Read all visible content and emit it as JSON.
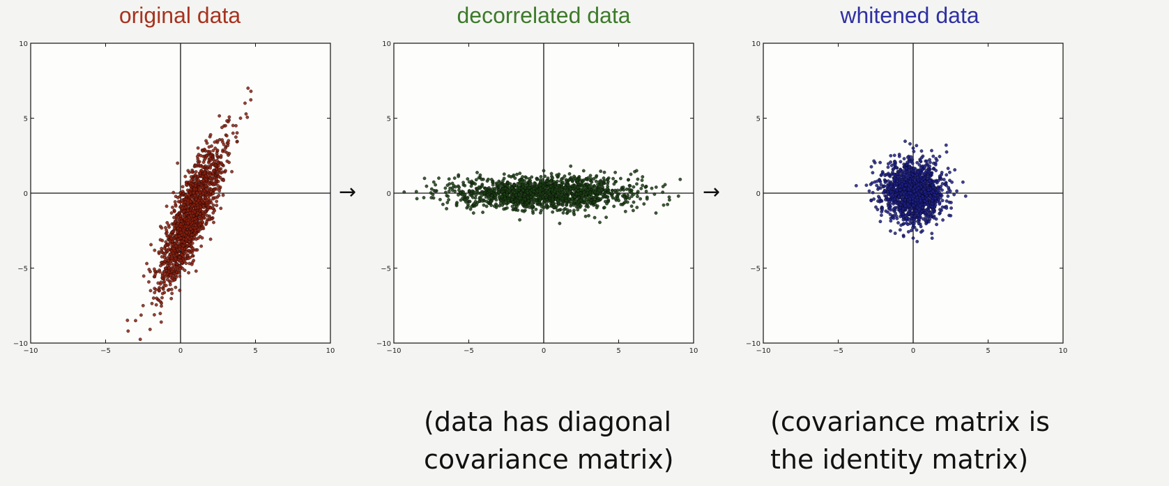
{
  "panels": [
    {
      "title": "original data",
      "color": "#a8321f",
      "marker_color": "#8a1e0e"
    },
    {
      "title": "decorrelated data",
      "color": "#3d7a2a",
      "marker_color": "#1b3d14"
    },
    {
      "title": "whitened data",
      "color": "#2f30a3",
      "marker_color": "#1c1f86"
    }
  ],
  "arrows": [
    "→",
    "→"
  ],
  "captions": {
    "decorrelated": [
      "(data has diagonal",
      "covariance matrix)"
    ],
    "whitened": [
      "(covariance matrix is",
      "the identity matrix)"
    ]
  },
  "chart_data": [
    {
      "type": "scatter",
      "title": "original data",
      "xlim": [
        -10,
        10
      ],
      "ylim": [
        -10,
        10
      ],
      "xticks": [
        -10,
        -5,
        0,
        5,
        10
      ],
      "yticks": [
        -10,
        -5,
        0,
        5,
        10
      ],
      "points": [
        [
          -2.5,
          -7.5
        ],
        [
          -2,
          -6.5
        ],
        [
          -1.8,
          -7
        ],
        [
          -1.5,
          -6
        ],
        [
          -1.2,
          -5.5
        ],
        [
          -1,
          -5
        ],
        [
          -0.8,
          -4.5
        ],
        [
          -0.5,
          -4
        ],
        [
          -0.3,
          -3.5
        ],
        [
          0,
          -3
        ],
        [
          0.2,
          -2.5
        ],
        [
          0.5,
          -2
        ],
        [
          0.7,
          -1.5
        ],
        [
          1,
          -1
        ],
        [
          1.2,
          -0.5
        ],
        [
          1.5,
          0
        ],
        [
          1.7,
          0.5
        ],
        [
          2,
          1
        ],
        [
          2.2,
          1.5
        ],
        [
          2.5,
          2
        ],
        [
          2.7,
          2.5
        ],
        [
          3,
          3
        ],
        [
          3.2,
          3.5
        ],
        [
          3.5,
          4
        ],
        [
          3.7,
          4.5
        ],
        [
          4,
          5
        ],
        [
          4.3,
          6
        ],
        [
          4.5,
          7
        ],
        [
          -3,
          -8.5
        ],
        [
          -3.5,
          -9.2
        ],
        [
          -1,
          -3.5
        ],
        [
          0,
          -1.5
        ],
        [
          0.5,
          -0.5
        ],
        [
          1,
          0.5
        ],
        [
          2,
          2.5
        ],
        [
          3,
          4.5
        ],
        [
          1.5,
          -1.5
        ],
        [
          2.5,
          0.5
        ],
        [
          0,
          -4.5
        ],
        [
          -0.5,
          -5.5
        ],
        [
          1,
          -2.5
        ],
        [
          2,
          -0.5
        ],
        [
          3,
          1.5
        ],
        [
          0.5,
          1.5
        ],
        [
          -0.2,
          2
        ]
      ],
      "spread_axis": [
        2.2,
        5.4
      ],
      "spread_perp": 0.55,
      "n": 1500,
      "center": [
        0.7,
        -1.5
      ]
    },
    {
      "type": "scatter",
      "title": "decorrelated data",
      "xlim": [
        -10,
        10
      ],
      "ylim": [
        -10,
        10
      ],
      "xticks": [
        -10,
        -5,
        0,
        5,
        10
      ],
      "yticks": [
        -10,
        -5,
        0,
        5,
        10
      ],
      "center": [
        0,
        0
      ],
      "std": [
        3.0,
        0.55
      ],
      "n": 1500,
      "points": [
        [
          -8.5,
          0.1
        ],
        [
          -7.5,
          -0.3
        ],
        [
          -6,
          0.5
        ],
        [
          -4,
          -0.8
        ],
        [
          -2,
          1.2
        ],
        [
          0,
          1.5
        ],
        [
          2,
          -1.3
        ],
        [
          4,
          1
        ],
        [
          6,
          -0.6
        ],
        [
          7.5,
          0.4
        ],
        [
          8,
          -0.8
        ],
        [
          6.2,
          1.5
        ],
        [
          -7,
          1
        ],
        [
          3,
          -1.5
        ]
      ]
    },
    {
      "type": "scatter",
      "title": "whitened data",
      "xlim": [
        -10,
        10
      ],
      "ylim": [
        -10,
        10
      ],
      "xticks": [
        -10,
        -5,
        0,
        5,
        10
      ],
      "yticks": [
        -10,
        -5,
        0,
        5,
        10
      ],
      "center": [
        0,
        0
      ],
      "std": [
        1.0,
        1.0
      ],
      "n": 1500,
      "points": [
        [
          -3.8,
          0.5
        ],
        [
          3.5,
          -0.2
        ],
        [
          2.2,
          3.2
        ],
        [
          0,
          3
        ],
        [
          0,
          -3
        ],
        [
          -2.8,
          -0.5
        ],
        [
          2.5,
          -1.5
        ],
        [
          -1.5,
          2.5
        ]
      ]
    }
  ]
}
